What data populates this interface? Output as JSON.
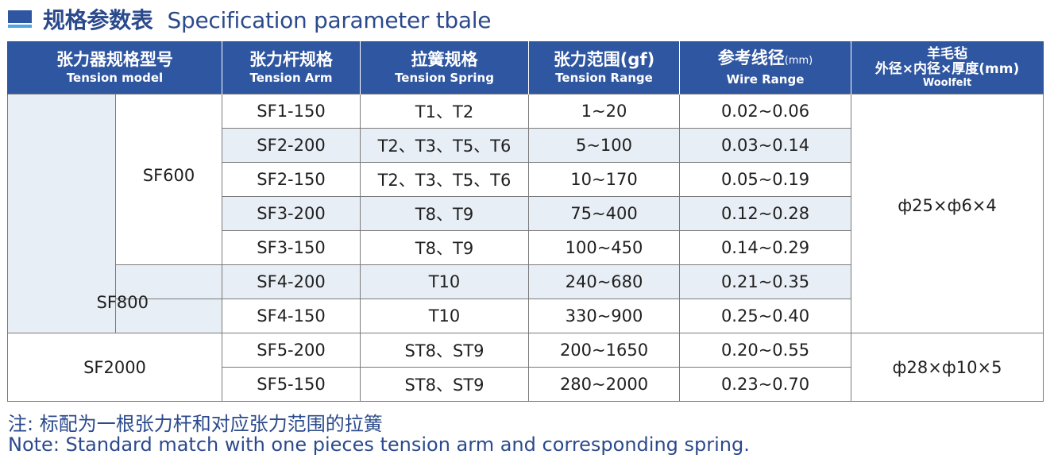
{
  "title": {
    "cn": "规格参数表",
    "en": "Specification parameter tbale"
  },
  "headers": {
    "model": {
      "cn": "张力器规格型号",
      "en": "Tension model"
    },
    "arm": {
      "cn": "张力杆规格",
      "en": "Tension Arm"
    },
    "spring": {
      "cn": "拉簧规格",
      "en": "Tension Spring"
    },
    "range": {
      "cn": "张力范围(gf)",
      "en": "Tension Range"
    },
    "wire": {
      "cn": "参考线径",
      "unit": "(mm)",
      "en": "Wire Range"
    },
    "woolfelt": {
      "cn1": "羊毛毡",
      "cn2": "外径×内径×厚度(mm)",
      "en": "Woolfelt"
    }
  },
  "models": {
    "sf600": "SF600",
    "sf800": "SF800",
    "sf2000": "SF2000"
  },
  "rows": [
    {
      "arm": "SF1-150",
      "spring": "T1、T2",
      "range": "1~20",
      "wire": "0.02~0.06"
    },
    {
      "arm": "SF2-200",
      "spring": "T2、T3、T5、T6",
      "range": "5~100",
      "wire": "0.03~0.14"
    },
    {
      "arm": "SF2-150",
      "spring": "T2、T3、T5、T6",
      "range": "10~170",
      "wire": "0.05~0.19"
    },
    {
      "arm": "SF3-200",
      "spring": "T8、T9",
      "range": "75~400",
      "wire": "0.12~0.28"
    },
    {
      "arm": "SF3-150",
      "spring": "T8、T9",
      "range": "100~450",
      "wire": "0.14~0.29"
    },
    {
      "arm": "SF4-200",
      "spring": "T10",
      "range": "240~680",
      "wire": "0.21~0.35"
    },
    {
      "arm": "SF4-150",
      "spring": "T10",
      "range": "330~900",
      "wire": "0.25~0.40"
    },
    {
      "arm": "SF5-200",
      "spring": "ST8、ST9",
      "range": "200~1650",
      "wire": "0.20~0.55"
    },
    {
      "arm": "SF5-150",
      "spring": "ST8、ST9",
      "range": "280~2000",
      "wire": "0.23~0.70"
    }
  ],
  "woolfelt": {
    "group1": "ф25×ф6×4",
    "group2": "ф28×ф10×5"
  },
  "notes": {
    "cn": "注: 标配为一根张力杆和对应张力范围的拉簧",
    "en": "Note: Standard match with one pieces tension arm and corresponding spring."
  },
  "colors": {
    "header_bg": "#2f56a0",
    "row_shade": "#e8eef5",
    "title_text": "#2b4a8c"
  }
}
